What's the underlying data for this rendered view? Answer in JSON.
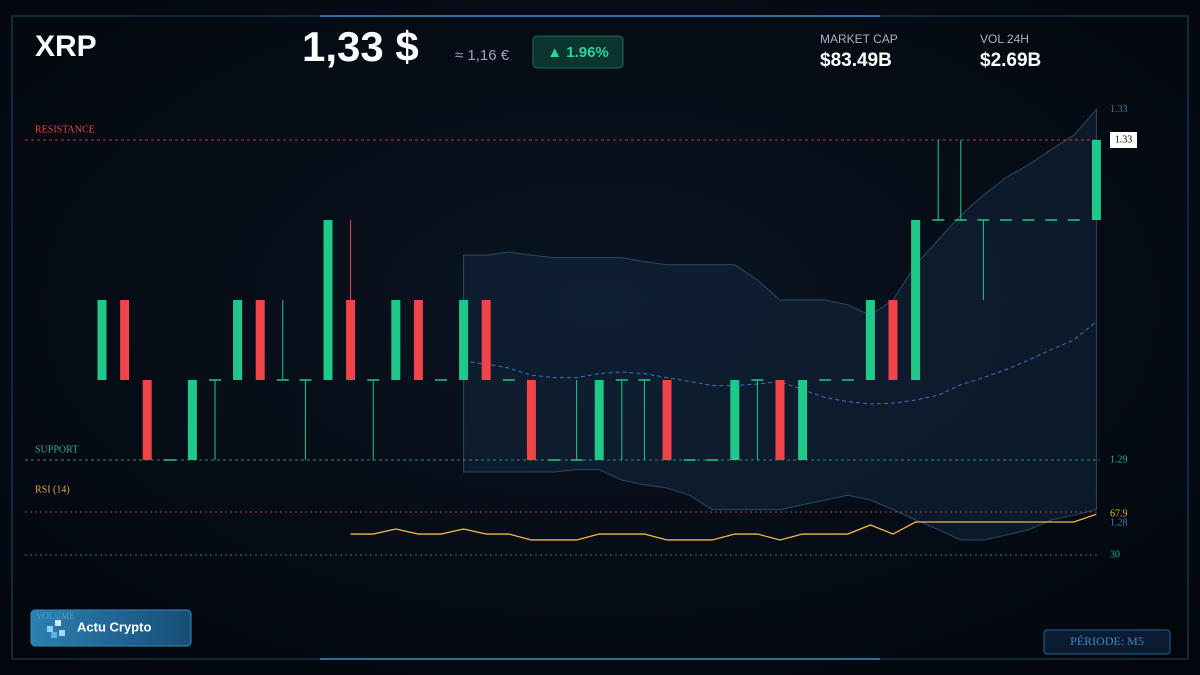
{
  "header": {
    "symbol": "XRP",
    "price": "1,33 $",
    "price_eur": "≈ 1,16 €",
    "change": "▲ 1.96%"
  },
  "stats": [
    {
      "label": "MARKET CAP",
      "value": "$83.49B"
    },
    {
      "label": "VOL 24H",
      "value": "$2.69B"
    }
  ],
  "chart_data": {
    "type": "candlestick",
    "open": [
      1.3,
      1.31,
      1.3,
      1.29,
      1.29,
      1.3,
      1.3,
      1.31,
      1.3,
      1.3,
      1.3,
      1.31,
      1.3,
      1.3,
      1.31,
      1.3,
      1.3,
      1.31,
      1.3,
      1.3,
      1.29,
      1.29,
      1.29,
      1.3,
      1.3,
      1.3,
      1.29,
      1.29,
      1.29,
      1.3,
      1.3,
      1.29,
      1.3,
      1.3,
      1.3,
      1.31,
      1.3,
      1.32,
      1.32,
      1.32,
      1.32,
      1.32,
      1.32,
      1.32,
      1.32
    ],
    "high": [
      1.31,
      1.31,
      1.3,
      1.29,
      1.3,
      1.3,
      1.31,
      1.31,
      1.31,
      1.3,
      1.32,
      1.32,
      1.3,
      1.31,
      1.31,
      1.3,
      1.31,
      1.31,
      1.3,
      1.3,
      1.29,
      1.3,
      1.3,
      1.3,
      1.3,
      1.3,
      1.29,
      1.29,
      1.3,
      1.3,
      1.3,
      1.3,
      1.3,
      1.3,
      1.31,
      1.31,
      1.32,
      1.33,
      1.33,
      1.32,
      1.32,
      1.32,
      1.32,
      1.32,
      1.33
    ],
    "low": [
      1.3,
      1.3,
      1.29,
      1.29,
      1.29,
      1.29,
      1.3,
      1.3,
      1.3,
      1.29,
      1.3,
      1.3,
      1.29,
      1.3,
      1.3,
      1.3,
      1.3,
      1.3,
      1.3,
      1.29,
      1.29,
      1.29,
      1.29,
      1.29,
      1.29,
      1.29,
      1.29,
      1.29,
      1.29,
      1.29,
      1.29,
      1.29,
      1.3,
      1.3,
      1.3,
      1.3,
      1.3,
      1.32,
      1.32,
      1.31,
      1.32,
      1.32,
      1.32,
      1.32,
      1.32
    ],
    "close": [
      1.31,
      1.3,
      1.29,
      1.29,
      1.3,
      1.3,
      1.31,
      1.3,
      1.3,
      1.3,
      1.32,
      1.3,
      1.3,
      1.31,
      1.3,
      1.3,
      1.31,
      1.3,
      1.3,
      1.29,
      1.29,
      1.29,
      1.3,
      1.3,
      1.3,
      1.29,
      1.29,
      1.29,
      1.3,
      1.3,
      1.29,
      1.3,
      1.3,
      1.3,
      1.31,
      1.3,
      1.32,
      1.32,
      1.32,
      1.32,
      1.32,
      1.32,
      1.32,
      1.32,
      1.33
    ],
    "up_color": "#1fc98a",
    "down_color": "#f0444a",
    "ylim": [
      1.28,
      1.33
    ],
    "levels": [
      {
        "label": "RESISTANCE",
        "value": 1.33,
        "color": "#e0454b"
      },
      {
        "label": "SUPPORT",
        "value": 1.29,
        "color": "#2bb07e"
      }
    ],
    "band": {
      "upper": [
        null,
        null,
        null,
        null,
        null,
        null,
        null,
        null,
        null,
        null,
        null,
        null,
        null,
        null,
        null,
        null,
        1.3156,
        1.3156,
        1.316,
        1.3156,
        1.3153,
        1.3153,
        1.3153,
        1.3153,
        1.3148,
        1.3144,
        1.3144,
        1.3144,
        1.3144,
        1.3125,
        1.31,
        1.31,
        1.31,
        1.3094,
        1.3081,
        1.31,
        1.3144,
        1.3175,
        1.3206,
        1.3231,
        1.3253,
        1.3269,
        1.3288,
        1.3306,
        1.3338
      ],
      "middle": [
        null,
        null,
        null,
        null,
        null,
        null,
        null,
        null,
        null,
        null,
        null,
        null,
        null,
        null,
        null,
        null,
        1.3023,
        1.302,
        1.3015,
        1.3006,
        1.3003,
        1.3003,
        1.3008,
        1.301,
        1.3008,
        1.3003,
        1.2998,
        1.2993,
        1.2993,
        1.2995,
        1.2998,
        1.2988,
        1.2978,
        1.2973,
        1.297,
        1.2971,
        1.2975,
        1.2981,
        1.2994,
        1.3003,
        1.3013,
        1.3025,
        1.3038,
        1.305,
        1.3073
      ],
      "lower": [
        null,
        null,
        null,
        null,
        null,
        null,
        null,
        null,
        null,
        null,
        null,
        null,
        null,
        null,
        null,
        null,
        1.2885,
        1.2885,
        1.2885,
        1.2885,
        1.2885,
        1.2888,
        1.2888,
        1.2875,
        1.2869,
        1.2865,
        1.2856,
        1.2838,
        1.2838,
        1.2838,
        1.2838,
        1.2844,
        1.285,
        1.2856,
        1.285,
        1.2838,
        1.2825,
        1.2813,
        1.28,
        1.28,
        1.2806,
        1.2813,
        1.2825,
        1.2831,
        1.2838
      ],
      "upper_label": "1.33",
      "lower_label": "1.28"
    },
    "rsi": {
      "title": "RSI (14)",
      "color": "#f2b84b",
      "ylim": [
        30,
        70
      ],
      "yticks": [
        30
      ],
      "values": [
        null,
        null,
        null,
        null,
        null,
        null,
        null,
        null,
        null,
        null,
        null,
        49.5,
        49.5,
        54.2,
        49.5,
        49.5,
        54.2,
        49.5,
        49.5,
        44,
        44,
        44,
        49.5,
        49.5,
        49.5,
        44,
        44,
        44,
        49.5,
        49.5,
        44,
        49.5,
        49.5,
        49.5,
        57.9,
        49.5,
        60.7,
        60.7,
        60.7,
        60.7,
        60.7,
        60.7,
        60.7,
        60.7,
        67.9
      ]
    }
  },
  "footer": {
    "volume": "VOLUME",
    "brand": "Actu Crypto",
    "period": "PÉRIODE: M5"
  }
}
